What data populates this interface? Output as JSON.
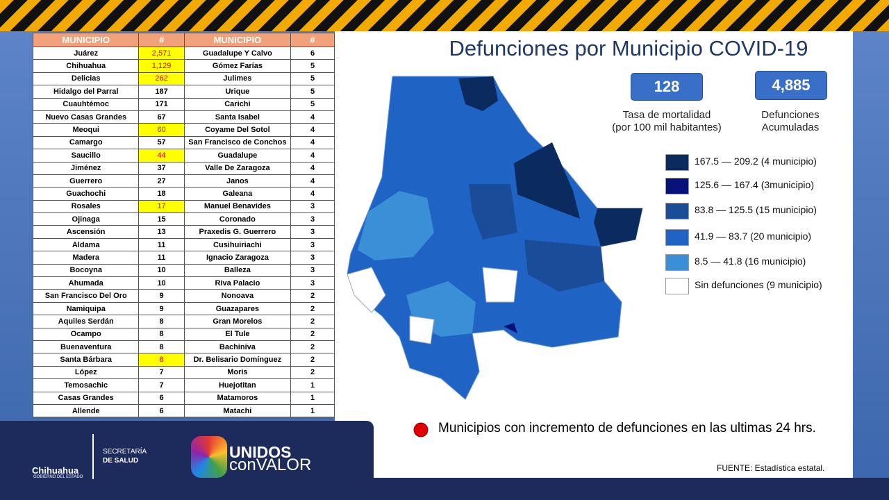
{
  "header": {
    "title": "Defunciones por Municipio COVID-19"
  },
  "stats": [
    {
      "value": "128",
      "label": [
        "Tasa de mortalidad",
        "(por 100 mil habitantes)"
      ]
    },
    {
      "value": "4,885",
      "label": [
        "Defunciones",
        "Acumuladas"
      ]
    }
  ],
  "table": {
    "headers": [
      "MUNICIPIO",
      "#",
      "MUNICIPIO",
      "#"
    ],
    "highlighted_rows": [
      0,
      1,
      2,
      6,
      8,
      12,
      24
    ],
    "rows": [
      [
        "Juárez",
        "2,571",
        "Guadalupe Y Calvo",
        "6"
      ],
      [
        "Chihuahua",
        "1,129",
        "Gómez Farías",
        "5"
      ],
      [
        "Delicias",
        "262",
        "Julimes",
        "5"
      ],
      [
        "Hidalgo del Parral",
        "187",
        "Urique",
        "5"
      ],
      [
        "Cuauhtémoc",
        "171",
        "Carichi",
        "5"
      ],
      [
        "Nuevo Casas Grandes",
        "67",
        "Santa Isabel",
        "4"
      ],
      [
        "Meoqui",
        "60",
        "Coyame Del Sotol",
        "4"
      ],
      [
        "Camargo",
        "57",
        "San Francisco de Conchos",
        "4"
      ],
      [
        "Saucillo",
        "44",
        "Guadalupe",
        "4"
      ],
      [
        "Jiménez",
        "37",
        "Valle De Zaragoza",
        "4"
      ],
      [
        "Guerrero",
        "27",
        "Janos",
        "4"
      ],
      [
        "Guachochi",
        "18",
        "Galeana",
        "4"
      ],
      [
        "Rosales",
        "17",
        "Manuel Benavides",
        "3"
      ],
      [
        "Ojinaga",
        "15",
        "Coronado",
        "3"
      ],
      [
        "Ascensión",
        "13",
        "Praxedis G. Guerrero",
        "3"
      ],
      [
        "Aldama",
        "11",
        "Cusihuiriachi",
        "3"
      ],
      [
        "Madera",
        "11",
        "Ignacio Zaragoza",
        "3"
      ],
      [
        "Bocoyna",
        "10",
        "Balleza",
        "3"
      ],
      [
        "Ahumada",
        "10",
        "Riva Palacio",
        "3"
      ],
      [
        "San Francisco Del Oro",
        "9",
        "Nonoava",
        "2"
      ],
      [
        "Namiquipa",
        "9",
        "Guazapares",
        "2"
      ],
      [
        "Aquiles Serdán",
        "8",
        "Gran Morelos",
        "2"
      ],
      [
        "Ocampo",
        "8",
        "El Tule",
        "2"
      ],
      [
        "Buenaventura",
        "8",
        "Bachiniva",
        "2"
      ],
      [
        "Santa Bárbara",
        "8",
        "Dr. Belisario Domínguez",
        "2"
      ],
      [
        "López",
        "7",
        "Moris",
        "2"
      ],
      [
        "Temosachic",
        "7",
        "Huejotitan",
        "1"
      ],
      [
        "Casas Grandes",
        "6",
        "Matamoros",
        "1"
      ],
      [
        "Allende",
        "6",
        "Matachi",
        "1"
      ]
    ]
  },
  "legend": {
    "items": [
      {
        "label": "167.5 — 209.2 (4 municipio)",
        "color": "#0b2a5e"
      },
      {
        "label": "125.6 — 167.4 (3municipio)",
        "color": "#06127a"
      },
      {
        "label": "83.8 — 125.5 (15 municipio)",
        "color": "#1a4c9a"
      },
      {
        "label": "41.9 — 83.7 (20 municipio)",
        "color": "#1f64c4"
      },
      {
        "label": "8.5 — 41.8 (16 municipio)",
        "color": "#3a8fd6"
      },
      {
        "label": "Sin defunciones (9 municipio)",
        "color": "#ffffff"
      }
    ]
  },
  "note": "Municipios con incremento de defunciones en las ultimas 24 hrs.",
  "source": "FUENTE:  Estadística estatal.",
  "footer": {
    "state": "Chihuahua",
    "state_sub": "GOBIERNO DEL ESTADO",
    "dept_1": "SECRETARÍA",
    "dept_2": "DE SALUD",
    "brand_1": "UNIDOS",
    "brand_2": "conVALOR"
  }
}
